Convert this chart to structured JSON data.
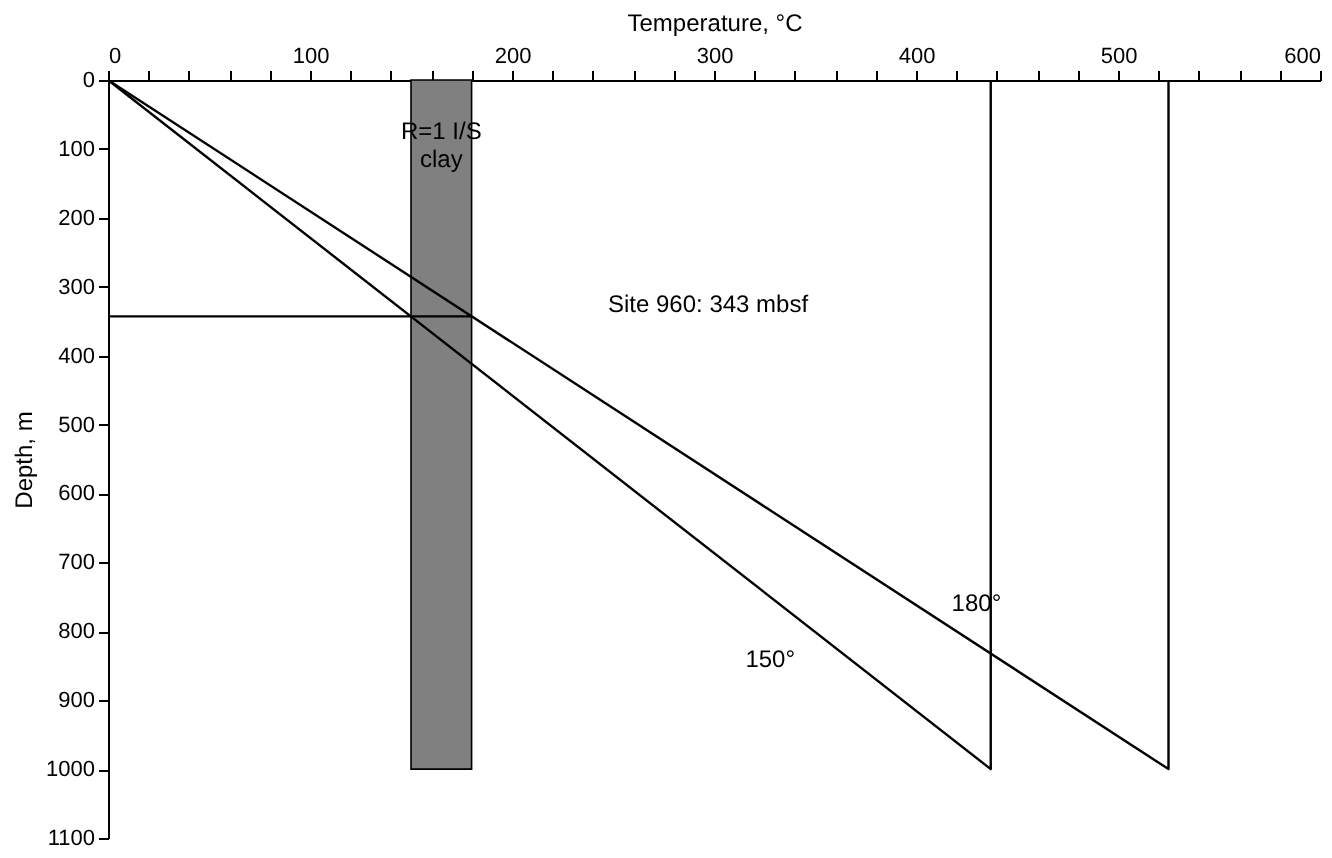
{
  "chart_data": {
    "type": "line",
    "xlabel": "Temperature, °C",
    "ylabel": "Depth, m",
    "series": [
      {
        "name": "150°",
        "color": "#000000",
        "x": [
          0,
          437,
          437
        ],
        "values": [
          0,
          1000,
          0
        ]
      },
      {
        "name": "180°",
        "color": "#000000",
        "x": [
          0,
          525,
          525
        ],
        "values": [
          0,
          1000,
          0
        ]
      },
      {
        "color": "#000000",
        "x": [
          0,
          180
        ],
        "values": [
          343,
          343
        ]
      }
    ],
    "bands": [
      {
        "axis": "x",
        "from": 150,
        "to": 180,
        "label": "R=1 I/S clay",
        "color": "#808080"
      }
    ],
    "annotations": [
      "Site 960: 343 mbsf"
    ],
    "xlim": [
      0,
      600
    ],
    "xticks": [
      0,
      {
        "value": 20,
        "label": null
      },
      {
        "value": 40,
        "label": null
      },
      {
        "value": 60,
        "label": null
      },
      {
        "value": 80,
        "label": null
      },
      100,
      {
        "value": 120,
        "label": null
      },
      {
        "value": 140,
        "label": null
      },
      {
        "value": 160,
        "label": null
      },
      {
        "value": 180,
        "label": null
      },
      200,
      {
        "value": 220,
        "label": null
      },
      {
        "value": 240,
        "label": null
      },
      {
        "value": 260,
        "label": null
      },
      {
        "value": 280,
        "label": null
      },
      300,
      {
        "value": 320,
        "label": null
      },
      {
        "value": 340,
        "label": null
      },
      {
        "value": 360,
        "label": null
      },
      {
        "value": 380,
        "label": null
      },
      400,
      {
        "value": 420,
        "label": null
      },
      {
        "value": 440,
        "label": null
      },
      {
        "value": 460,
        "label": null
      },
      {
        "value": 480,
        "label": null
      },
      500,
      {
        "value": 520,
        "label": null
      },
      {
        "value": 540,
        "label": null
      },
      {
        "value": 560,
        "label": null
      },
      {
        "value": 580,
        "label": null
      },
      600
    ],
    "ylim": [
      1100,
      0
    ],
    "yticks": [
      0,
      100,
      200,
      300,
      400,
      500,
      600,
      700,
      800,
      900,
      1000,
      1100
    ],
    "grid": false,
    "marker": "none",
    "line_style": "solid"
  }
}
